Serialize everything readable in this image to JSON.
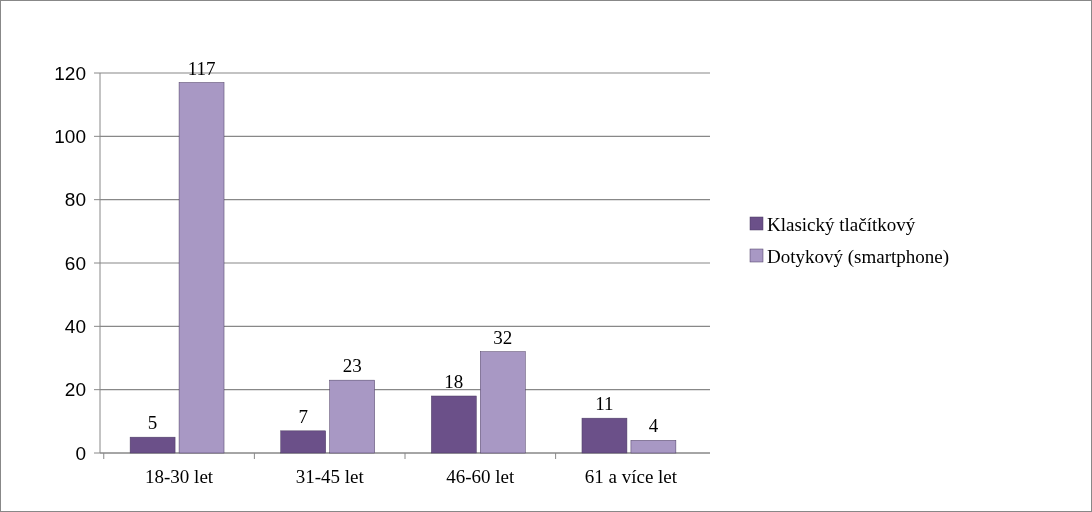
{
  "chart_data": {
    "type": "bar",
    "categories": [
      "18-30 let",
      "31-45 let",
      "46-60 let",
      "61 a více let"
    ],
    "series": [
      {
        "name": "Klasický tlačítkový",
        "color": "#6b5089",
        "values": [
          5,
          7,
          18,
          11
        ]
      },
      {
        "name": "Dotykový (smartphone)",
        "color": "#a898c4",
        "values": [
          117,
          23,
          32,
          4
        ]
      }
    ],
    "ylim": [
      0,
      120
    ],
    "yticks": [
      0,
      20,
      40,
      60,
      80,
      100,
      120
    ],
    "grid": "y",
    "legend": "right",
    "data_labels": true
  }
}
